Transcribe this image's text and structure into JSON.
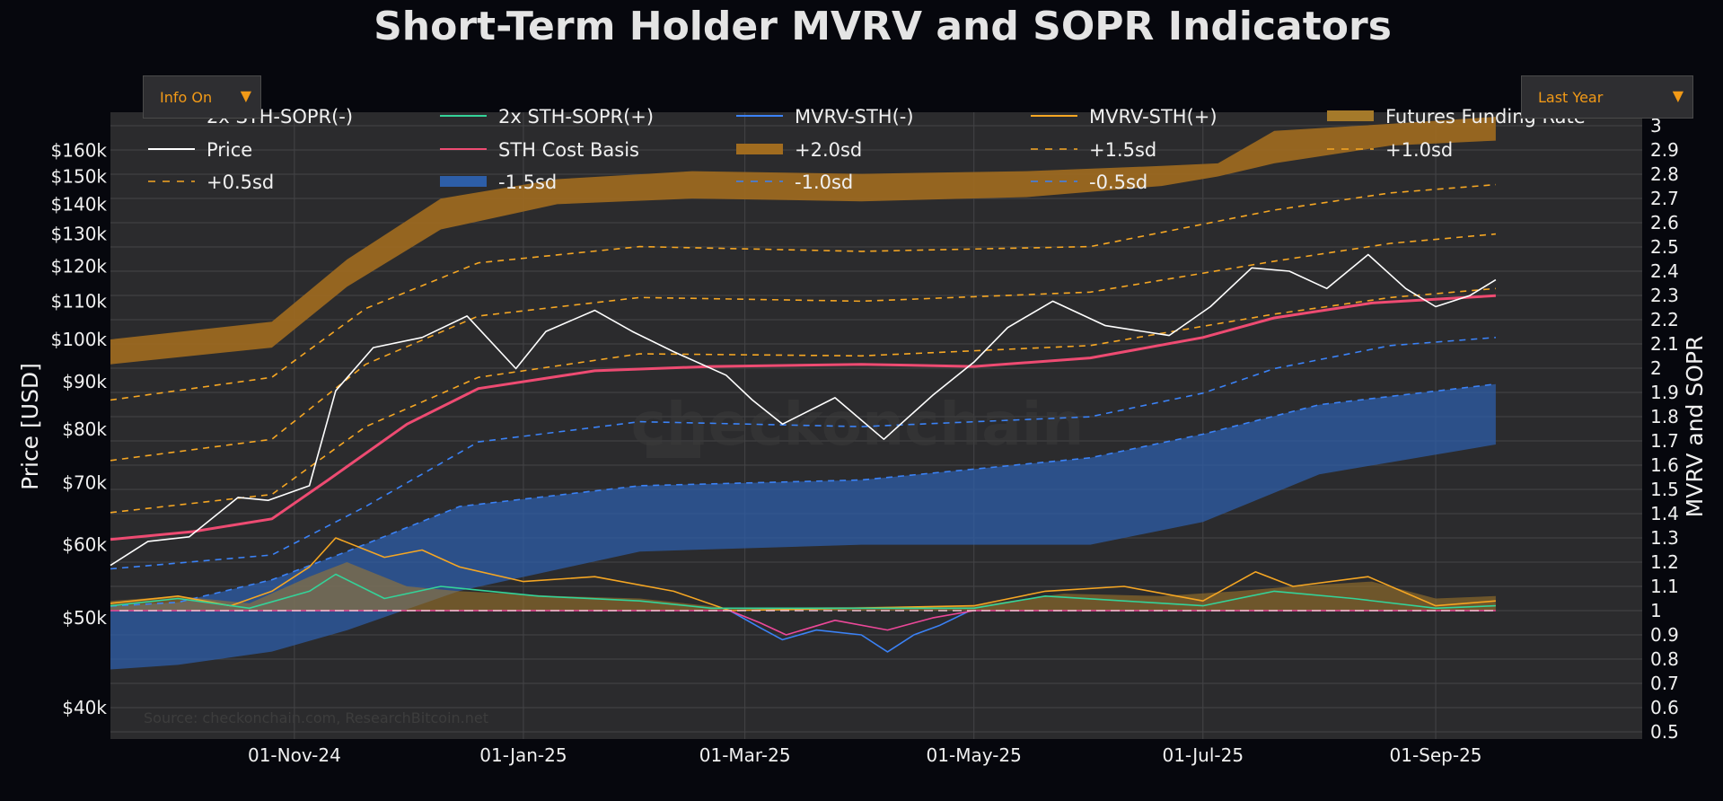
{
  "title": "Short-Term Holder MVRV and SOPR Indicators",
  "controls": {
    "info_dropdown": "Info On",
    "range_dropdown": "Last Year",
    "caret_icon": "chevron-down-icon"
  },
  "source": "Source: checkonchain.com, ResearchBitcoin.net",
  "watermark": "checkonchain",
  "colors": {
    "background": "#06070d",
    "plot": "#2b2b2d",
    "price": "#ffffff",
    "cost_basis": "#ee4b72",
    "orange": "#f5a623",
    "blue": "#3b82f6",
    "sopr_pos": "#34d399",
    "sopr_neg": "#ec4899"
  },
  "chart_data": {
    "type": "line",
    "title": "Short-Term Holder MVRV and SOPR Indicators",
    "ylabel": "Price [USD]",
    "y2label": "MVRV and SOPR",
    "yscale": "log",
    "ylim": [
      37000,
      176000
    ],
    "y2lim": [
      0.5,
      3.0
    ],
    "xlim": [
      "2024-09-13",
      "2025-10-26"
    ],
    "x_ticks": [
      {
        "date": "2024-11-01",
        "label": "01-Nov-24"
      },
      {
        "date": "2025-01-01",
        "label": "01-Jan-25"
      },
      {
        "date": "2025-03-01",
        "label": "01-Mar-25"
      },
      {
        "date": "2025-05-01",
        "label": "01-May-25"
      },
      {
        "date": "2025-07-01",
        "label": "01-Jul-25"
      },
      {
        "date": "2025-09-01",
        "label": "01-Sep-25"
      }
    ],
    "y_ticks": [
      {
        "value": 40000,
        "label": "$40k"
      },
      {
        "value": 50000,
        "label": "$50k"
      },
      {
        "value": 60000,
        "label": "$60k"
      },
      {
        "value": 70000,
        "label": "$70k"
      },
      {
        "value": 80000,
        "label": "$80k"
      },
      {
        "value": 90000,
        "label": "$90k"
      },
      {
        "value": 100000,
        "label": "$100k"
      },
      {
        "value": 110000,
        "label": "$110k"
      },
      {
        "value": 120000,
        "label": "$120k"
      },
      {
        "value": 130000,
        "label": "$130k"
      },
      {
        "value": 140000,
        "label": "$140k"
      },
      {
        "value": 150000,
        "label": "$150k"
      },
      {
        "value": 160000,
        "label": "$160k"
      }
    ],
    "y2_ticks": [
      "0.5",
      "0.6",
      "0.7",
      "0.8",
      "0.9",
      "1",
      "1.1",
      "1.2",
      "1.3",
      "1.4",
      "1.5",
      "1.6",
      "1.7",
      "1.8",
      "1.9",
      "2",
      "2.1",
      "2.2",
      "2.3",
      "2.4",
      "2.5",
      "2.6",
      "2.7",
      "2.8",
      "2.9",
      "3"
    ],
    "legend": [
      {
        "label": "2x STH-SOPR(-)",
        "style": "line",
        "color": "#ec4899"
      },
      {
        "label": "2x STH-SOPR(+)",
        "style": "line",
        "color": "#34d399"
      },
      {
        "label": "MVRV-STH(-)",
        "style": "line",
        "color": "#3b82f6"
      },
      {
        "label": "MVRV-STH(+)",
        "style": "line",
        "color": "#f5a623"
      },
      {
        "label": "Futures Funding Rate",
        "style": "area",
        "color": "#a57a2a"
      },
      {
        "label": "Price",
        "style": "line",
        "color": "#ffffff"
      },
      {
        "label": "STH Cost Basis",
        "style": "line",
        "color": "#ee4b72"
      },
      {
        "label": "+2.0sd",
        "style": "area",
        "color": "#a16c1f"
      },
      {
        "label": "+1.5sd",
        "style": "dash",
        "color": "#f5a623"
      },
      {
        "label": "+1.0sd",
        "style": "dash",
        "color": "#f5a623"
      },
      {
        "label": "+0.5sd",
        "style": "dash",
        "color": "#f5a623"
      },
      {
        "label": "-1.5sd",
        "style": "area",
        "color": "#2d5ea8"
      },
      {
        "label": "-1.0sd",
        "style": "dash",
        "color": "#3b82f6"
      },
      {
        "label": "-0.5sd",
        "style": "dash",
        "color": "#3b82f6"
      }
    ],
    "series": [
      {
        "name": "Price",
        "axis": "price",
        "x": [
          "2024-09-13",
          "2024-09-23",
          "2024-10-04",
          "2024-10-17",
          "2024-10-25",
          "2024-11-05",
          "2024-11-12",
          "2024-11-22",
          "2024-12-05",
          "2024-12-17",
          "2024-12-30",
          "2025-01-07",
          "2025-01-20",
          "2025-01-30",
          "2025-02-10",
          "2025-02-24",
          "2025-03-03",
          "2025-03-11",
          "2025-03-25",
          "2025-04-07",
          "2025-04-20",
          "2025-05-01",
          "2025-05-10",
          "2025-05-22",
          "2025-06-05",
          "2025-06-22",
          "2025-07-03",
          "2025-07-14",
          "2025-07-24",
          "2025-08-03",
          "2025-08-14",
          "2025-08-24",
          "2025-09-01",
          "2025-09-10",
          "2025-09-17"
        ],
        "y": [
          57000,
          60500,
          61200,
          67500,
          67000,
          69500,
          88000,
          98000,
          100500,
          106000,
          93000,
          102000,
          107500,
          102000,
          97000,
          91500,
          86000,
          81000,
          86500,
          78000,
          87000,
          94500,
          103000,
          110000,
          103500,
          101000,
          108500,
          119500,
          118500,
          113500,
          123500,
          113500,
          108500,
          111500,
          116000
        ]
      },
      {
        "name": "STH Cost Basis",
        "axis": "price",
        "x": [
          "2024-09-13",
          "2024-10-05",
          "2024-10-26",
          "2024-11-10",
          "2024-12-01",
          "2024-12-20",
          "2025-01-20",
          "2025-02-20",
          "2025-04-01",
          "2025-05-01",
          "2025-06-01",
          "2025-07-01",
          "2025-07-20",
          "2025-08-15",
          "2025-09-17"
        ],
        "y": [
          60800,
          62000,
          64000,
          70500,
          81000,
          88500,
          92500,
          93500,
          94000,
          93500,
          95500,
          100500,
          105500,
          109500,
          111500
        ]
      },
      {
        "name": "+2.0sd upper",
        "axis": "price",
        "x": [
          "2024-09-13",
          "2024-10-26",
          "2024-11-15",
          "2024-12-10",
          "2025-01-10",
          "2025-02-15",
          "2025-04-01",
          "2025-05-15",
          "2025-06-20",
          "2025-07-05",
          "2025-07-20",
          "2025-08-20",
          "2025-09-17"
        ],
        "y": [
          100000,
          104500,
          122000,
          142000,
          149000,
          152000,
          151000,
          152000,
          154000,
          155000,
          168000,
          171000,
          174000
        ]
      },
      {
        "name": "+2.0sd lower",
        "axis": "price",
        "x": [
          "2024-09-13",
          "2024-10-26",
          "2024-11-15",
          "2024-12-10",
          "2025-01-10",
          "2025-02-15",
          "2025-04-01",
          "2025-05-15",
          "2025-06-20",
          "2025-07-05",
          "2025-07-20",
          "2025-08-20",
          "2025-09-17"
        ],
        "y": [
          94000,
          98000,
          114000,
          131500,
          140000,
          142000,
          141000,
          142500,
          146500,
          150000,
          155000,
          162000,
          164000
        ]
      },
      {
        "name": "+1.5sd",
        "axis": "price",
        "x": [
          "2024-09-13",
          "2024-10-26",
          "2024-11-20",
          "2024-12-20",
          "2025-02-01",
          "2025-04-01",
          "2025-06-01",
          "2025-07-20",
          "2025-08-20",
          "2025-09-17"
        ],
        "y": [
          86000,
          91000,
          108000,
          121000,
          126000,
          124500,
          126000,
          138000,
          144000,
          147000
        ]
      },
      {
        "name": "+1.0sd",
        "axis": "price",
        "x": [
          "2024-09-13",
          "2024-10-26",
          "2024-11-20",
          "2024-12-20",
          "2025-02-01",
          "2025-04-01",
          "2025-06-01",
          "2025-07-20",
          "2025-08-20",
          "2025-09-17"
        ],
        "y": [
          74000,
          78000,
          94000,
          106000,
          111000,
          110000,
          112500,
          121500,
          127000,
          130000
        ]
      },
      {
        "name": "+0.5sd",
        "axis": "price",
        "x": [
          "2024-09-13",
          "2024-10-26",
          "2024-11-20",
          "2024-12-20",
          "2025-02-01",
          "2025-04-01",
          "2025-06-01",
          "2025-07-20",
          "2025-08-20",
          "2025-09-17"
        ],
        "y": [
          65000,
          68000,
          80500,
          91000,
          96500,
          96000,
          98500,
          106500,
          111000,
          113500
        ]
      },
      {
        "name": "-0.5sd",
        "axis": "price",
        "x": [
          "2024-09-13",
          "2024-10-26",
          "2024-11-20",
          "2024-12-20",
          "2025-02-01",
          "2025-04-01",
          "2025-06-01",
          "2025-07-01",
          "2025-07-20",
          "2025-08-20",
          "2025-09-17"
        ],
        "y": [
          56500,
          58500,
          66000,
          77500,
          81500,
          80500,
          82500,
          87500,
          93000,
          98500,
          100500
        ]
      },
      {
        "name": "-1.0sd",
        "axis": "price",
        "x": [
          "2024-09-13",
          "2024-10-01",
          "2024-10-26",
          "2024-11-15",
          "2024-12-15",
          "2025-02-01",
          "2025-04-01",
          "2025-06-01",
          "2025-07-01",
          "2025-08-01",
          "2025-09-17"
        ],
        "y": [
          51500,
          52000,
          55000,
          59000,
          66000,
          69500,
          70500,
          74500,
          79000,
          85000,
          89500
        ]
      },
      {
        "name": "-1.5sd upper",
        "axis": "price",
        "x": [
          "2024-09-13",
          "2024-10-01",
          "2024-10-26",
          "2024-11-15",
          "2024-12-15",
          "2025-02-01",
          "2025-04-01",
          "2025-06-01",
          "2025-07-01",
          "2025-08-01",
          "2025-09-17"
        ],
        "y": [
          51500,
          52000,
          55000,
          59000,
          66000,
          69500,
          70500,
          74500,
          79000,
          85000,
          89500
        ]
      },
      {
        "name": "-1.5sd lower",
        "axis": "price",
        "x": [
          "2024-09-13",
          "2024-10-01",
          "2024-10-26",
          "2024-11-15",
          "2024-12-15",
          "2025-02-01",
          "2025-04-01",
          "2025-06-01",
          "2025-07-01",
          "2025-08-01",
          "2025-09-17"
        ],
        "y": [
          44000,
          44500,
          46000,
          48500,
          53500,
          59000,
          60000,
          60000,
          63500,
          71500,
          77000
        ]
      },
      {
        "name": "MVRV-STH(+)",
        "axis": "ratio",
        "x": [
          "2024-09-13",
          "2024-10-01",
          "2024-10-15",
          "2024-10-26",
          "2024-11-05",
          "2024-11-12",
          "2024-11-25",
          "2024-12-05",
          "2024-12-15",
          "2025-01-01",
          "2025-01-20",
          "2025-02-10",
          "2025-02-25",
          "2025-05-01",
          "2025-05-20",
          "2025-06-10",
          "2025-07-01",
          "2025-07-15",
          "2025-07-25",
          "2025-08-14",
          "2025-09-01",
          "2025-09-17"
        ],
        "y": [
          1.03,
          1.06,
          1.02,
          1.08,
          1.18,
          1.3,
          1.22,
          1.25,
          1.18,
          1.12,
          1.14,
          1.08,
          1.0,
          1.02,
          1.08,
          1.1,
          1.04,
          1.16,
          1.1,
          1.14,
          1.02,
          1.04
        ]
      },
      {
        "name": "MVRV-STH(-)",
        "axis": "ratio",
        "x": [
          "2025-02-25",
          "2025-03-05",
          "2025-03-11",
          "2025-03-20",
          "2025-04-01",
          "2025-04-08",
          "2025-04-15",
          "2025-04-22",
          "2025-04-30"
        ],
        "y": [
          1.0,
          0.93,
          0.88,
          0.92,
          0.9,
          0.83,
          0.9,
          0.94,
          1.0
        ]
      },
      {
        "name": "2x STH-SOPR(+)",
        "axis": "ratio",
        "x": [
          "2024-09-13",
          "2024-10-01",
          "2024-10-20",
          "2024-11-05",
          "2024-11-12",
          "2024-11-25",
          "2024-12-10",
          "2025-01-05",
          "2025-02-01",
          "2025-02-20",
          "2025-05-01",
          "2025-05-20",
          "2025-06-10",
          "2025-07-01",
          "2025-07-20",
          "2025-08-10",
          "2025-09-01",
          "2025-09-17"
        ],
        "y": [
          1.02,
          1.05,
          1.01,
          1.08,
          1.15,
          1.05,
          1.1,
          1.06,
          1.04,
          1.01,
          1.01,
          1.06,
          1.04,
          1.02,
          1.08,
          1.05,
          1.01,
          1.02
        ]
      },
      {
        "name": "2x STH-SOPR(-)",
        "axis": "ratio",
        "x": [
          "2024-09-13",
          "2025-02-25",
          "2025-03-05",
          "2025-03-12",
          "2025-03-25",
          "2025-04-08",
          "2025-04-20",
          "2025-05-01",
          "2025-09-17"
        ],
        "y": [
          1.0,
          1.0,
          0.95,
          0.9,
          0.96,
          0.92,
          0.97,
          1.0,
          1.0
        ]
      },
      {
        "name": "Futures Funding Rate",
        "axis": "ratio",
        "x": [
          "2024-09-13",
          "2024-10-01",
          "2024-10-20",
          "2024-11-05",
          "2024-11-15",
          "2024-12-01",
          "2024-12-15",
          "2025-01-10",
          "2025-02-01",
          "2025-02-25",
          "2025-05-01",
          "2025-05-25",
          "2025-06-20",
          "2025-07-10",
          "2025-07-25",
          "2025-08-15",
          "2025-09-01",
          "2025-09-17"
        ],
        "y": [
          1.04,
          1.06,
          1.03,
          1.14,
          1.2,
          1.1,
          1.08,
          1.06,
          1.05,
          1.01,
          1.02,
          1.07,
          1.06,
          1.08,
          1.1,
          1.12,
          1.05,
          1.06
        ]
      }
    ]
  }
}
